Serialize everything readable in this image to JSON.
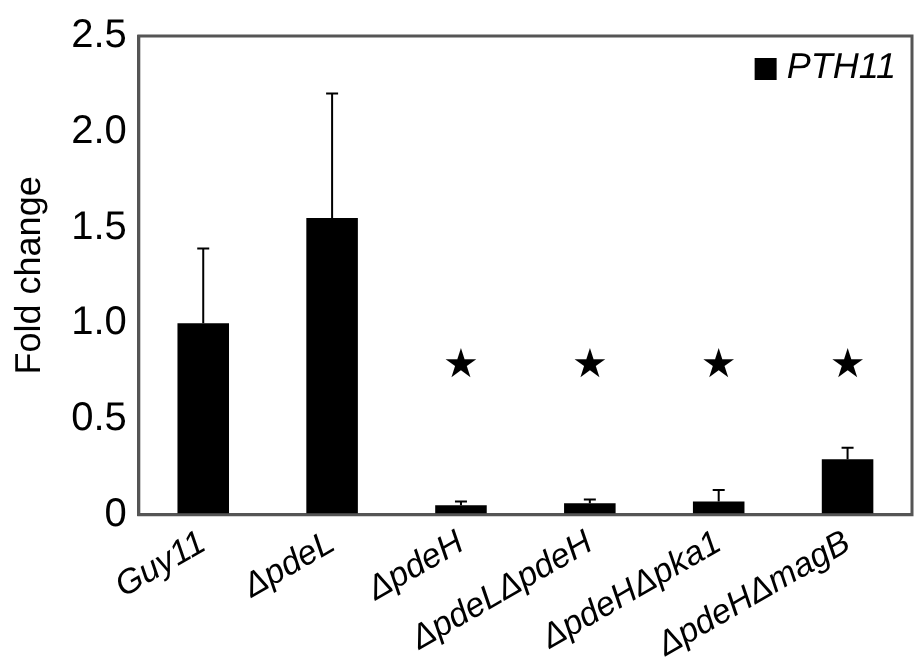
{
  "chart_data": {
    "type": "bar",
    "ylabel": "Fold change",
    "categories": [
      "Guy11",
      "ΔpdeL",
      "ΔpdeH",
      "ΔpdeLΔpdeH",
      "ΔpdeHΔpka1",
      "ΔpdeHΔmagB"
    ],
    "series": [
      {
        "name": "PTH11",
        "color": "#000000",
        "values": [
          1.0,
          1.55,
          0.05,
          0.06,
          0.07,
          0.29
        ],
        "errors": [
          [
            1.0,
            1.39
          ],
          [
            1.55,
            2.2
          ],
          [
            0.05,
            0.07
          ],
          [
            0.06,
            0.08
          ],
          [
            0.07,
            0.13
          ],
          [
            0.29,
            0.35
          ]
        ]
      }
    ],
    "ylim": [
      0,
      2.5
    ],
    "yticks": [
      0,
      {
        "value": 0.5,
        "label": "0.5"
      },
      {
        "value": 1,
        "label": "1.0"
      },
      {
        "value": 1.5,
        "label": "1.5"
      },
      {
        "value": 2,
        "label": "2.0"
      },
      {
        "value": 2.5,
        "label": "2.5"
      }
    ],
    "annotations": [
      "★",
      "★",
      "★",
      "★"
    ],
    "legend": "top right",
    "grid": false
  }
}
